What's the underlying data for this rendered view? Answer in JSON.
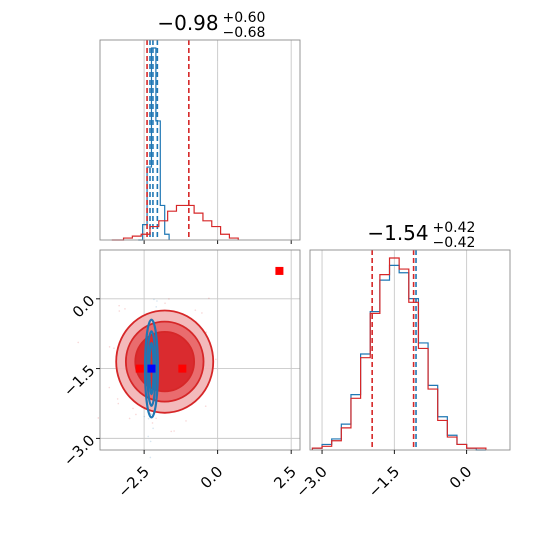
{
  "chart_data": [
    {
      "type": "histogram",
      "panel": "top-left",
      "title": {
        "median": "−0.98",
        "upper": "+0.60",
        "lower": "−0.68"
      },
      "xlim": [
        -4.0,
        2.8
      ],
      "grid": true,
      "series": [
        {
          "name": "",
          "color": "#1f77b4",
          "bin_edges": [
            -2.7,
            -2.55,
            -2.4,
            -2.25,
            -2.1,
            -1.95,
            -1.8,
            -1.65
          ],
          "counts": [
            0,
            8,
            38,
            100,
            62,
            18,
            3
          ],
          "quantile_lines": [
            -2.3,
            -2.2,
            -2.05
          ]
        },
        {
          "name": "",
          "color": "#d62728",
          "bin_edges": [
            -3.6,
            -3.2,
            -2.9,
            -2.6,
            -2.3,
            -2.0,
            -1.7,
            -1.4,
            -1.1,
            -0.8,
            -0.5,
            -0.2,
            0.1,
            0.4,
            0.7
          ],
          "counts": [
            0,
            1,
            2,
            3,
            7,
            10,
            15,
            18,
            18,
            14,
            10,
            7,
            3,
            1
          ],
          "quantile_lines": [
            -2.4,
            -0.98
          ]
        }
      ]
    },
    {
      "type": "histogram",
      "panel": "bottom-right",
      "title": {
        "median": "−1.54",
        "upper": "+0.42",
        "lower": "−0.42"
      },
      "xlim": [
        -3.25,
        0.9
      ],
      "xticks": [
        -3.0,
        -1.5,
        0.0
      ],
      "xticklabels": [
        "−3.0",
        "−1.5",
        "0.0"
      ],
      "grid": true,
      "series": [
        {
          "name": "",
          "color": "#1f77b4",
          "bin_edges": [
            -3.2,
            -3.0,
            -2.8,
            -2.6,
            -2.4,
            -2.2,
            -2.0,
            -1.8,
            -1.6,
            -1.4,
            -1.2,
            -1.0,
            -0.8,
            -0.6,
            -0.4,
            -0.2,
            0.0,
            0.2,
            0.4
          ],
          "counts": [
            1,
            3,
            6,
            14,
            30,
            52,
            75,
            92,
            100,
            96,
            82,
            58,
            35,
            18,
            8,
            3,
            1,
            0
          ],
          "quantile_lines": [
            -1.05
          ]
        },
        {
          "name": "",
          "color": "#d62728",
          "bin_edges": [
            -3.2,
            -3.0,
            -2.8,
            -2.6,
            -2.4,
            -2.2,
            -2.0,
            -1.8,
            -1.6,
            -1.4,
            -1.2,
            -1.0,
            -0.8,
            -0.6,
            -0.4,
            -0.2,
            0.0,
            0.2,
            0.4
          ],
          "counts": [
            1,
            2,
            5,
            12,
            28,
            50,
            74,
            95,
            104,
            98,
            80,
            55,
            33,
            16,
            7,
            3,
            1,
            1
          ],
          "quantile_lines": [
            -1.96,
            -1.1
          ]
        }
      ]
    },
    {
      "type": "scatter",
      "panel": "bottom-left",
      "xlim": [
        -4.0,
        2.8
      ],
      "ylim": [
        -3.25,
        1.05
      ],
      "xticks": [
        -2.5,
        0.0,
        2.5
      ],
      "xticklabels": [
        "−2.5",
        "0.0",
        "2.5"
      ],
      "yticks": [
        0.0,
        -1.5,
        -3.0
      ],
      "yticklabels": [
        "0.0",
        "−1.5",
        "−3.0"
      ],
      "grid": true,
      "contours": [
        {
          "color": "#d62728",
          "center": [
            -1.8,
            -1.35
          ],
          "radii": [
            [
              1.65,
              1.1
            ],
            [
              1.32,
              0.86
            ],
            [
              1.0,
              0.64
            ]
          ],
          "fill": true
        },
        {
          "color": "#1f77b4",
          "center": [
            -2.25,
            -1.5
          ],
          "radii": [
            [
              0.22,
              1.05
            ],
            [
              0.14,
              0.8
            ],
            [
              0.07,
              0.55
            ]
          ],
          "fill": false
        }
      ],
      "markers": [
        {
          "x": 2.1,
          "y": 0.6,
          "color": "#ff0000"
        },
        {
          "x": -2.65,
          "y": -1.5,
          "color": "#ff0000"
        },
        {
          "x": -1.2,
          "y": -1.5,
          "color": "#ff0000"
        },
        {
          "x": -2.25,
          "y": -1.5,
          "color": "#0000ff"
        }
      ]
    }
  ]
}
